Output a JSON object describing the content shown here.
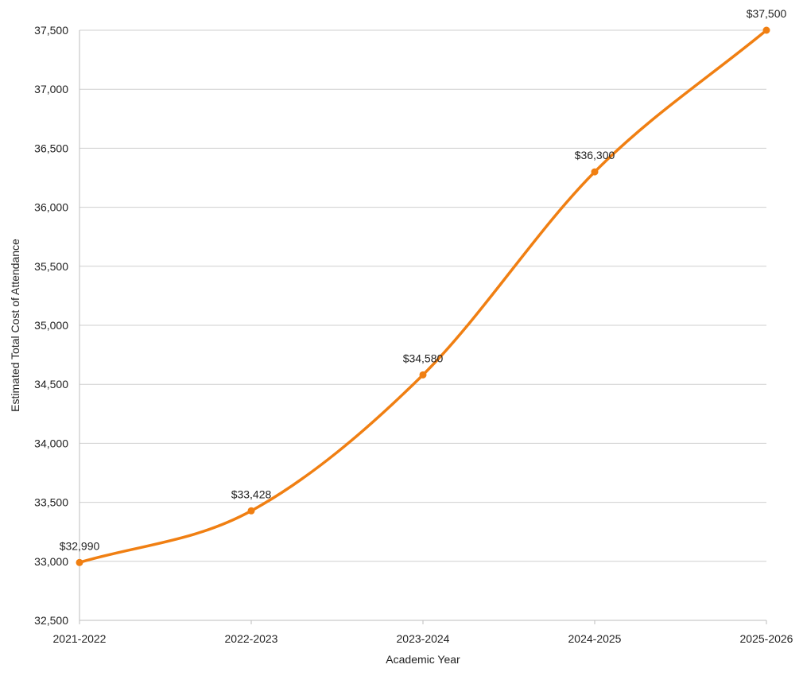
{
  "chart_data": {
    "type": "line",
    "title": "",
    "xlabel": "Academic Year",
    "ylabel": "Estimated Total Cost of Attendance",
    "categories": [
      "2021-2022",
      "2022-2023",
      "2023-2024",
      "2024-2025",
      "2025-2026"
    ],
    "series": [
      {
        "values": [
          32990,
          33428,
          34580,
          36300,
          37500
        ],
        "data_labels": [
          "$32,990",
          "$33,428",
          "$34,580",
          "$36,300",
          "$37,500"
        ]
      }
    ],
    "ylim": [
      32500,
      37500
    ],
    "yticks": [
      32500,
      33000,
      33500,
      34000,
      34500,
      35000,
      35500,
      36000,
      36500,
      37000,
      37500
    ],
    "ytick_labels": [
      "32,500",
      "33,000",
      "33,500",
      "34,000",
      "34,500",
      "35,000",
      "35,500",
      "36,000",
      "36,500",
      "37,000",
      "37,500"
    ],
    "grid": true,
    "legend": "none",
    "line_style": "smooth",
    "colors": {
      "line": "#f07f12",
      "grid": "#cfcfcf",
      "text": "#222222"
    }
  }
}
